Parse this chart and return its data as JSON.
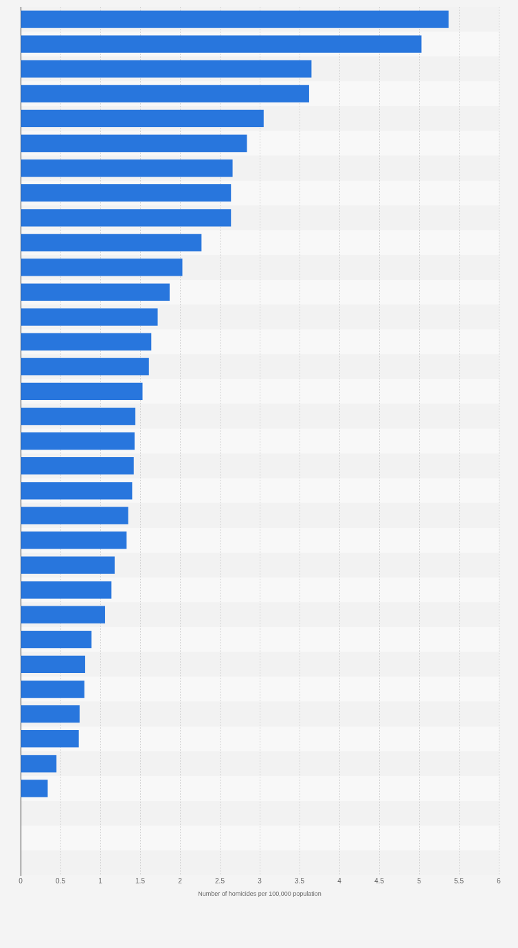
{
  "chart_data": {
    "type": "bar",
    "orientation": "horizontal",
    "xlabel": "Number of homicides per 100,000 population",
    "categories": [
      null,
      null,
      null,
      null,
      null,
      null,
      null,
      null,
      null,
      null,
      null,
      null,
      null,
      null,
      null,
      null,
      null,
      null,
      null,
      null,
      null,
      null,
      null,
      null,
      null,
      null,
      null,
      null,
      null,
      null,
      null,
      null,
      null,
      null,
      null
    ],
    "values": [
      5.37,
      5.03,
      3.65,
      3.62,
      3.05,
      2.84,
      2.66,
      2.64,
      2.64,
      2.27,
      2.03,
      1.87,
      1.72,
      1.64,
      1.61,
      1.53,
      1.44,
      1.43,
      1.42,
      1.4,
      1.35,
      1.33,
      1.18,
      1.14,
      1.06,
      0.89,
      0.81,
      0.8,
      0.74,
      0.73,
      0.45,
      0.34,
      null,
      null,
      null
    ],
    "color": "#2876dd",
    "xlim": [
      0,
      6
    ],
    "xticks": [
      0,
      0.5,
      1,
      1.5,
      2,
      2.5,
      3,
      3.5,
      4,
      4.5,
      5,
      5.5,
      6
    ],
    "grid": "x",
    "legend": false
  }
}
